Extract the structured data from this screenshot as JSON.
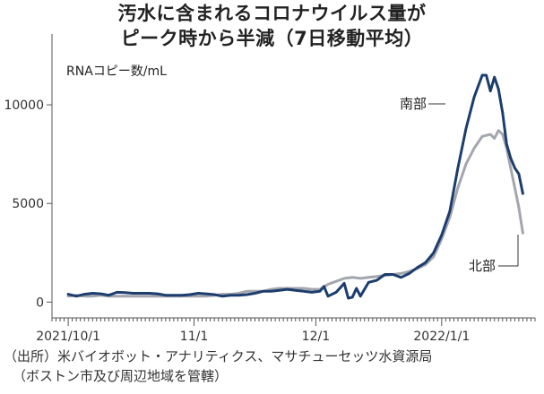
{
  "header": {
    "title_line1": "汚水に含まれるコロナウイルス量が",
    "title_line2": "ピーク時から半減（7日移動平均）"
  },
  "footnotes": {
    "line1": "（出所）米バイオボット・アナリティクス、マサチューセッツ水資源局",
    "line2": "（ボストン市及び周辺地域を管轄）"
  },
  "colors": {
    "south": "#1c3d6e",
    "north": "#a3a6ae",
    "axis": "#555555",
    "tick": "#333333"
  },
  "chart_data": {
    "type": "line",
    "title": "汚水に含まれるコロナウイルス量がピーク時から半減（7日移動平均）",
    "unit_label": "RNAコピー数/mL",
    "xlabel": "",
    "ylabel": "",
    "ylim": [
      -800,
      12500
    ],
    "xlim": [
      -4,
      115
    ],
    "yticks": [
      0,
      5000,
      10000
    ],
    "ytick_labels": [
      "0",
      "5000",
      "10000"
    ],
    "xticks": [
      0,
      31,
      61,
      92
    ],
    "xtick_labels": [
      "2021/10/1",
      "11/1",
      "12/1",
      "2022/1/1"
    ],
    "grid": false,
    "x_unit": "days since 2021/10/1",
    "series": [
      {
        "name": "南部",
        "color": "#1c3d6e",
        "points": [
          [
            0,
            400
          ],
          [
            2,
            300
          ],
          [
            4,
            400
          ],
          [
            6,
            450
          ],
          [
            8,
            420
          ],
          [
            10,
            350
          ],
          [
            12,
            500
          ],
          [
            14,
            480
          ],
          [
            16,
            450
          ],
          [
            18,
            450
          ],
          [
            20,
            450
          ],
          [
            22,
            420
          ],
          [
            24,
            350
          ],
          [
            26,
            350
          ],
          [
            28,
            350
          ],
          [
            30,
            380
          ],
          [
            32,
            450
          ],
          [
            34,
            420
          ],
          [
            36,
            380
          ],
          [
            38,
            300
          ],
          [
            40,
            350
          ],
          [
            42,
            350
          ],
          [
            44,
            380
          ],
          [
            46,
            450
          ],
          [
            48,
            550
          ],
          [
            50,
            550
          ],
          [
            52,
            600
          ],
          [
            54,
            650
          ],
          [
            56,
            600
          ],
          [
            58,
            550
          ],
          [
            60,
            500
          ],
          [
            62,
            550
          ],
          [
            63,
            800
          ],
          [
            64,
            300
          ],
          [
            66,
            500
          ],
          [
            68,
            950
          ],
          [
            69,
            200
          ],
          [
            70,
            250
          ],
          [
            71,
            700
          ],
          [
            72,
            300
          ],
          [
            74,
            1000
          ],
          [
            76,
            1100
          ],
          [
            78,
            1400
          ],
          [
            80,
            1400
          ],
          [
            82,
            1250
          ],
          [
            84,
            1450
          ],
          [
            86,
            1750
          ],
          [
            88,
            2000
          ],
          [
            90,
            2500
          ],
          [
            92,
            3400
          ],
          [
            94,
            4600
          ],
          [
            96,
            6800
          ],
          [
            98,
            8800
          ],
          [
            100,
            10400
          ],
          [
            102,
            11500
          ],
          [
            103,
            11500
          ],
          [
            104,
            10700
          ],
          [
            105,
            11400
          ],
          [
            106,
            10800
          ],
          [
            107,
            9600
          ],
          [
            108,
            8000
          ],
          [
            109,
            7300
          ],
          [
            110,
            6800
          ],
          [
            111,
            6500
          ],
          [
            112,
            5500
          ]
        ]
      },
      {
        "name": "北部",
        "color": "#a3a6ae",
        "points": [
          [
            0,
            300
          ],
          [
            2,
            350
          ],
          [
            4,
            300
          ],
          [
            6,
            300
          ],
          [
            8,
            350
          ],
          [
            10,
            300
          ],
          [
            12,
            300
          ],
          [
            14,
            300
          ],
          [
            16,
            300
          ],
          [
            18,
            300
          ],
          [
            20,
            300
          ],
          [
            22,
            300
          ],
          [
            24,
            300
          ],
          [
            26,
            300
          ],
          [
            28,
            300
          ],
          [
            30,
            300
          ],
          [
            32,
            300
          ],
          [
            34,
            300
          ],
          [
            36,
            350
          ],
          [
            38,
            400
          ],
          [
            40,
            400
          ],
          [
            42,
            450
          ],
          [
            44,
            550
          ],
          [
            46,
            550
          ],
          [
            48,
            550
          ],
          [
            50,
            650
          ],
          [
            52,
            700
          ],
          [
            54,
            700
          ],
          [
            56,
            700
          ],
          [
            58,
            700
          ],
          [
            60,
            650
          ],
          [
            62,
            650
          ],
          [
            64,
            900
          ],
          [
            66,
            1050
          ],
          [
            68,
            1200
          ],
          [
            70,
            1250
          ],
          [
            72,
            1200
          ],
          [
            74,
            1250
          ],
          [
            76,
            1300
          ],
          [
            78,
            1350
          ],
          [
            80,
            1400
          ],
          [
            82,
            1450
          ],
          [
            84,
            1550
          ],
          [
            86,
            1700
          ],
          [
            88,
            1900
          ],
          [
            90,
            2300
          ],
          [
            92,
            3200
          ],
          [
            94,
            4300
          ],
          [
            96,
            5800
          ],
          [
            98,
            7000
          ],
          [
            100,
            7800
          ],
          [
            102,
            8400
          ],
          [
            104,
            8500
          ],
          [
            105,
            8300
          ],
          [
            106,
            8700
          ],
          [
            107,
            8500
          ],
          [
            108,
            7800
          ],
          [
            109,
            6800
          ],
          [
            110,
            5800
          ],
          [
            111,
            4800
          ],
          [
            112,
            3500
          ]
        ]
      }
    ]
  }
}
